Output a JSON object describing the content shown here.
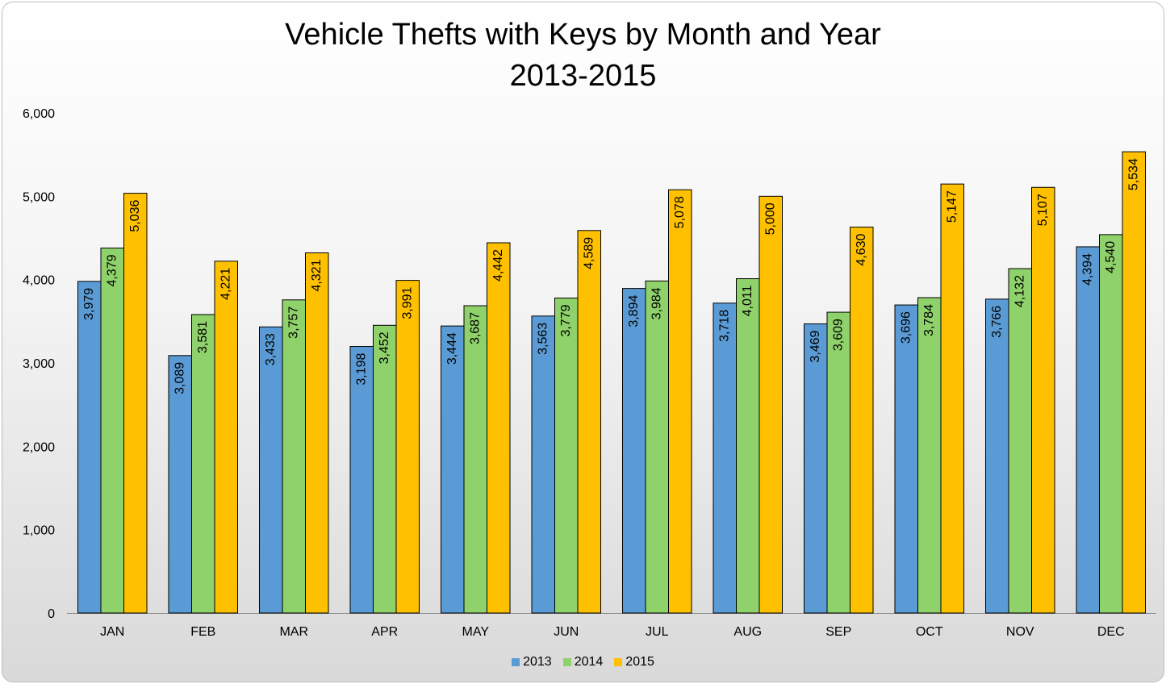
{
  "chart_data": {
    "type": "bar",
    "title": "Vehicle Thefts with Keys by Month and Year",
    "subtitle": "2013-2015",
    "xlabel": "",
    "ylabel": "",
    "ylim": [
      0,
      6000
    ],
    "yticks": [
      "0",
      "1,000",
      "2,000",
      "3,000",
      "4,000",
      "5,000",
      "6,000"
    ],
    "ytick_values": [
      0,
      1000,
      2000,
      3000,
      4000,
      5000,
      6000
    ],
    "grid": false,
    "legend_position": "bottom",
    "categories": [
      "JAN",
      "FEB",
      "MAR",
      "APR",
      "MAY",
      "JUN",
      "JUL",
      "AUG",
      "SEP",
      "OCT",
      "NOV",
      "DEC"
    ],
    "series": [
      {
        "name": "2013",
        "color": "#5b9bd5",
        "values": [
          3979,
          3089,
          3433,
          3198,
          3444,
          3563,
          3894,
          3718,
          3469,
          3696,
          3766,
          4394
        ],
        "labels": [
          "3,979",
          "3,089",
          "3,433",
          "3,198",
          "3,444",
          "3,563",
          "3,894",
          "3,718",
          "3,469",
          "3,696",
          "3,766",
          "4,394"
        ]
      },
      {
        "name": "2014",
        "color": "#8fd16a",
        "values": [
          4379,
          3581,
          3757,
          3452,
          3687,
          3779,
          3984,
          4011,
          3609,
          3784,
          4132,
          4540
        ],
        "labels": [
          "4,379",
          "3,581",
          "3,757",
          "3,452",
          "3,687",
          "3,779",
          "3,984",
          "4,011",
          "3,609",
          "3,784",
          "4,132",
          "4,540"
        ]
      },
      {
        "name": "2015",
        "color": "#ffc000",
        "values": [
          5036,
          4221,
          4321,
          3991,
          4442,
          4589,
          5078,
          5000,
          4630,
          5147,
          5107,
          5534
        ],
        "labels": [
          "5,036",
          "4,221",
          "4,321",
          "3,991",
          "4,442",
          "4,589",
          "5,078",
          "5,000",
          "4,630",
          "5,147",
          "5,107",
          "5,534"
        ]
      }
    ]
  }
}
